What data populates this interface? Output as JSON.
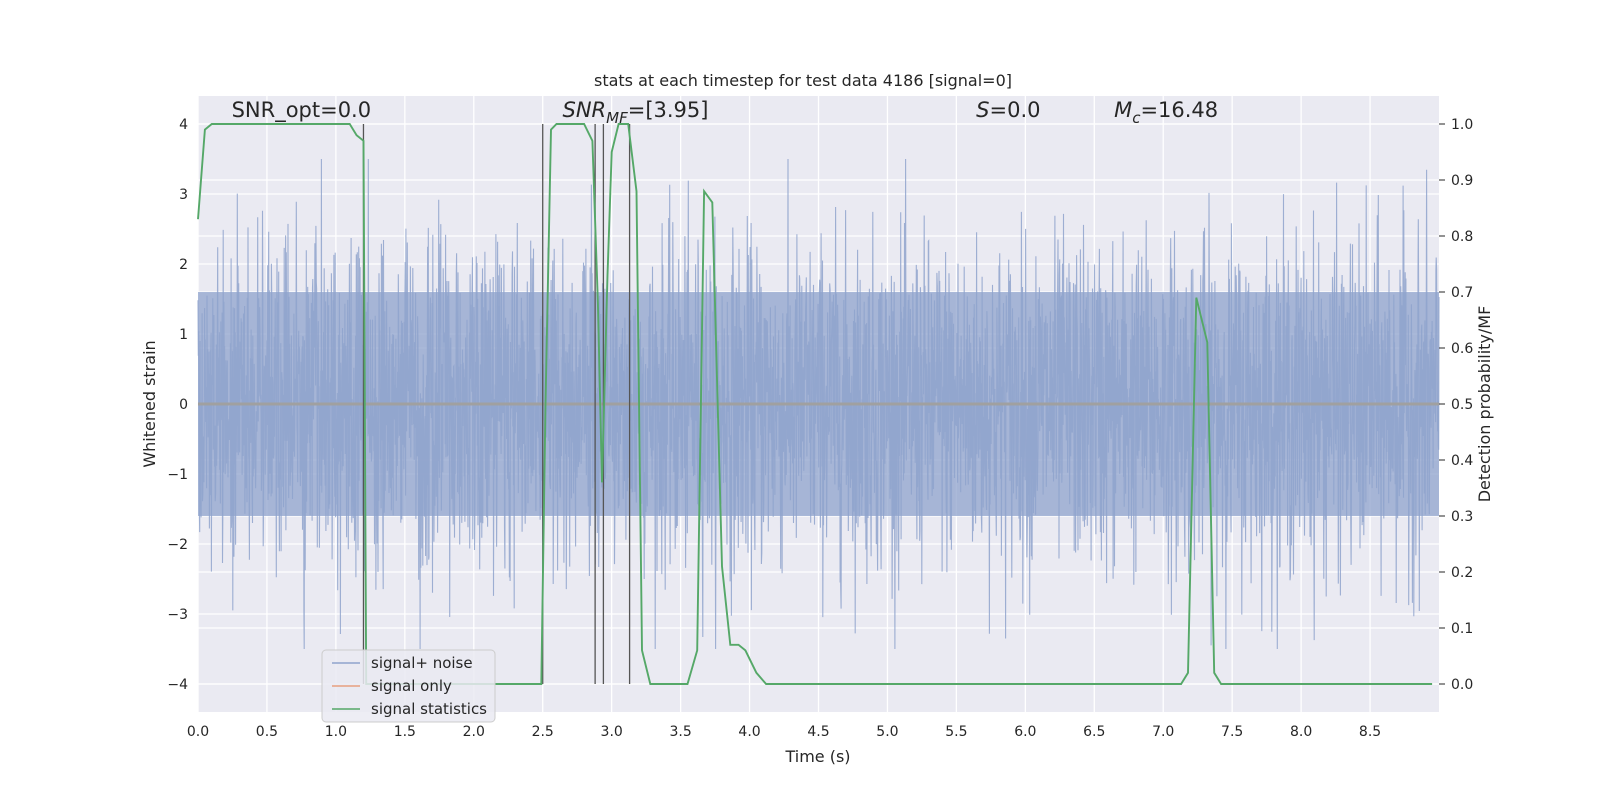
{
  "chart_data": {
    "type": "line",
    "title": "stats at each timestep for test data 4186 [signal=0]",
    "xlabel": "Time (s)",
    "ylabel": "Whitened strain",
    "ylabel_right": "Detection probability/MF",
    "xlim": [
      0,
      9
    ],
    "ylim": [
      -4.4,
      4.4
    ],
    "ylim_right": [
      -0.05,
      1.05
    ],
    "xticks": [
      "0.0",
      "0.5",
      "1.0",
      "1.5",
      "2.0",
      "2.5",
      "3.0",
      "3.5",
      "4.0",
      "4.5",
      "5.0",
      "5.5",
      "6.0",
      "6.5",
      "7.0",
      "7.5",
      "8.0",
      "8.5"
    ],
    "xtick_values": [
      0,
      0.5,
      1,
      1.5,
      2,
      2.5,
      3,
      3.5,
      4,
      4.5,
      5,
      5.5,
      6,
      6.5,
      7,
      7.5,
      8,
      8.5
    ],
    "yticks": [
      "4",
      "3",
      "2",
      "1",
      "0",
      "−1",
      "−2",
      "−3",
      "−4"
    ],
    "ytick_values": [
      4,
      3,
      2,
      1,
      0,
      -1,
      -2,
      -3,
      -4
    ],
    "yticks_right": [
      "1.0",
      "0.9",
      "0.8",
      "0.7",
      "0.6",
      "0.5",
      "0.4",
      "0.3",
      "0.2",
      "0.1",
      "0.0"
    ],
    "ytick_right_values": [
      1.0,
      0.9,
      0.8,
      0.7,
      0.6,
      0.5,
      0.4,
      0.3,
      0.2,
      0.1,
      0.0
    ],
    "grid": true,
    "legend_placement": "lower-left",
    "annotations": [
      {
        "x": 0.2,
        "y": 4.1,
        "text": "SNR_opt=0.0"
      },
      {
        "x": 2.6,
        "y": 4.1,
        "text": "SNR_MF=[3.95]"
      },
      {
        "x": 5.6,
        "y": 4.1,
        "text": "S=0.0"
      },
      {
        "x": 6.6,
        "y": 4.1,
        "text": "M_c=16.48"
      }
    ],
    "series": [
      {
        "name": "signal+ noise",
        "color": "#8fa3cc",
        "style": "noise",
        "amplitude_envelope": 3.5
      },
      {
        "name": "signal only",
        "color": "#e8a07f",
        "values_x": [
          0,
          9
        ],
        "values_y": [
          0,
          0
        ]
      },
      {
        "name": "signal statistics",
        "color": "#55a868",
        "axis": "right",
        "x": [
          0,
          0.05,
          0.1,
          0.5,
          1.0,
          1.1,
          1.15,
          1.2,
          1.22,
          1.25,
          1.3,
          1.5,
          2.0,
          2.49,
          2.52,
          2.56,
          2.6,
          2.8,
          2.86,
          2.9,
          2.93,
          2.97,
          3.0,
          3.05,
          3.12,
          3.18,
          3.22,
          3.28,
          3.35,
          3.55,
          3.62,
          3.67,
          3.73,
          3.8,
          3.86,
          3.92,
          3.97,
          4.05,
          4.12,
          4.2,
          4.5,
          5.0,
          6.0,
          7.0,
          7.13,
          7.18,
          7.24,
          7.32,
          7.37,
          7.42,
          7.48,
          8.0,
          8.5,
          8.95
        ],
        "y": [
          0.83,
          0.99,
          1.0,
          1.0,
          1.0,
          1.0,
          0.98,
          0.97,
          0.0,
          0.0,
          0.0,
          0.0,
          0.0,
          0.0,
          0.5,
          0.99,
          1.0,
          1.0,
          0.97,
          0.68,
          0.36,
          0.73,
          0.95,
          1.0,
          1.0,
          0.88,
          0.06,
          0.0,
          0.0,
          0.0,
          0.06,
          0.88,
          0.86,
          0.21,
          0.07,
          0.07,
          0.06,
          0.02,
          0.0,
          0.0,
          0.0,
          0.0,
          0.0,
          0.0,
          0.0,
          0.02,
          0.69,
          0.61,
          0.02,
          0.0,
          0.0,
          0.0,
          0.0,
          0.0
        ]
      }
    ],
    "vertical_lines": [
      1.2,
      2.5,
      2.88,
      2.94,
      3.13
    ]
  },
  "legend": {
    "noise_label": "signal+ noise",
    "signal_label": "signal only",
    "stats_label": "signal statistics"
  },
  "colors": {
    "plot_bg": "#eaeaf2",
    "grid": "#ffffff",
    "noise": "#8fa3cc",
    "signal": "#e8a07f",
    "stats": "#55a868",
    "vline": "#555555"
  }
}
